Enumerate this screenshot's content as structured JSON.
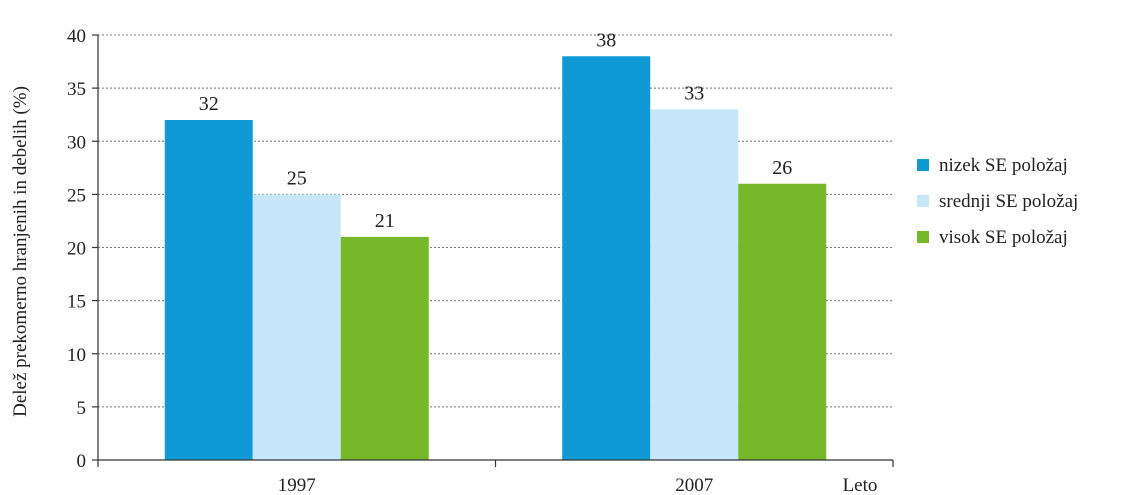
{
  "chart_data": {
    "type": "bar",
    "categories": [
      "1997",
      "2007"
    ],
    "series": [
      {
        "name": "nizek SE položaj",
        "values": [
          32,
          38
        ],
        "color": "#0f9ad6"
      },
      {
        "name": "srednji SE položaj",
        "values": [
          25,
          33
        ],
        "color": "#c6e7f7"
      },
      {
        "name": "visok SE položaj",
        "values": [
          21,
          26
        ],
        "color": "#76b82a"
      }
    ],
    "title": "",
    "xlabel": "Leto",
    "ylabel": "Delež prekomerno hranjenih in debelih (%)",
    "ylim": [
      0,
      40
    ],
    "yticks": [
      0,
      5,
      10,
      15,
      20,
      25,
      30,
      35,
      40
    ],
    "grid": true,
    "legend_position": "right"
  }
}
